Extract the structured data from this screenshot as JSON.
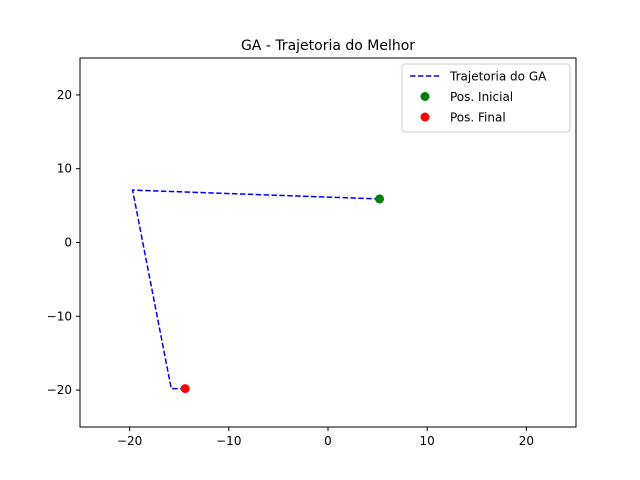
{
  "chart_data": {
    "type": "line",
    "title": "GA - Trajetoria do Melhor",
    "xlabel": "",
    "ylabel": "",
    "xlim": [
      -25,
      25
    ],
    "ylim": [
      -25,
      25
    ],
    "xticks": [
      -20,
      -10,
      0,
      10,
      20
    ],
    "yticks": [
      -20,
      -10,
      0,
      10,
      20
    ],
    "xtick_labels": [
      "−20",
      "−10",
      "0",
      "10",
      "20"
    ],
    "ytick_labels": [
      "−20",
      "−10",
      "0",
      "10",
      "20"
    ],
    "grid": false,
    "legend_position": "top-right",
    "series": [
      {
        "name": "Trajetoria do GA",
        "style": "dashed-line",
        "color": "#0000ff",
        "x": [
          5.2,
          -19.7,
          -15.8,
          -14.4
        ],
        "y": [
          5.9,
          7.1,
          -19.8,
          -19.8
        ]
      },
      {
        "name": "Pos. Inicial",
        "style": "marker",
        "color": "#008000",
        "x": [
          5.2
        ],
        "y": [
          5.9
        ]
      },
      {
        "name": "Pos. Final",
        "style": "marker",
        "color": "#ff0000",
        "x": [
          -14.4
        ],
        "y": [
          -19.8
        ]
      }
    ]
  }
}
